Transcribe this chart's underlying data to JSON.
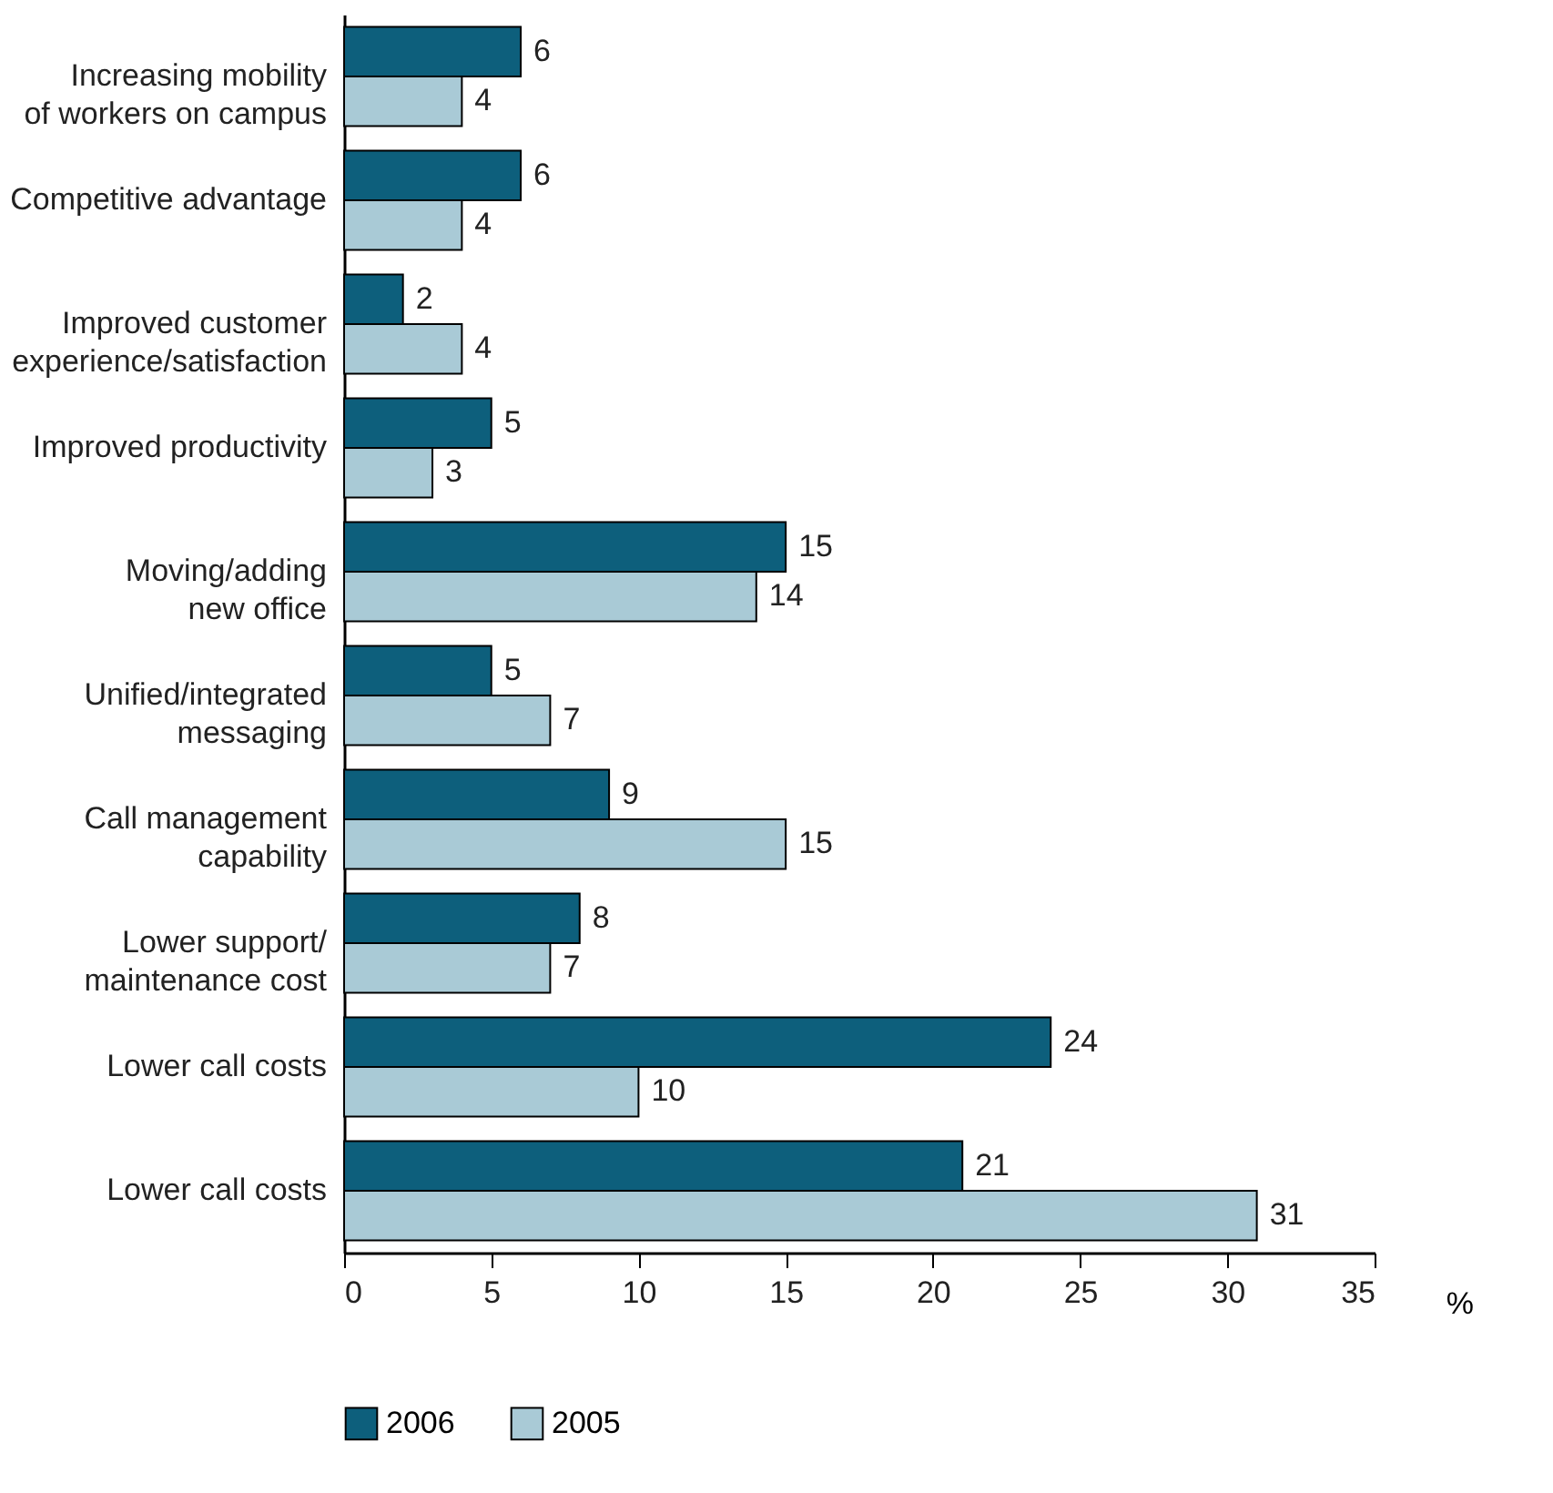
{
  "chart_data": {
    "type": "bar",
    "orientation": "horizontal",
    "categories": [
      "Increasing mobility\nof workers on campus",
      "Competitive advantage",
      "Improved customer\nexperience/satisfaction",
      "Improved productivity",
      "Moving/adding\nnew office",
      "Unified/integrated\nmessaging",
      "Call management\ncapability",
      "Lower support/\nmaintenance cost",
      "Lower call costs",
      "Lower call costs"
    ],
    "series": [
      {
        "name": "2006",
        "color": "#0d5f7c",
        "values": [
          6,
          6,
          2,
          5,
          15,
          5,
          9,
          8,
          24,
          21
        ]
      },
      {
        "name": "2005",
        "color": "#a9cad6",
        "values": [
          4,
          4,
          4,
          3,
          14,
          7,
          15,
          7,
          10,
          31
        ]
      }
    ],
    "xlabel": "%",
    "xlim": [
      0,
      35
    ],
    "xticks": [
      0,
      5,
      10,
      15,
      20,
      25,
      30,
      35
    ],
    "data_labels": true,
    "legend": "bottom",
    "grid": false
  }
}
